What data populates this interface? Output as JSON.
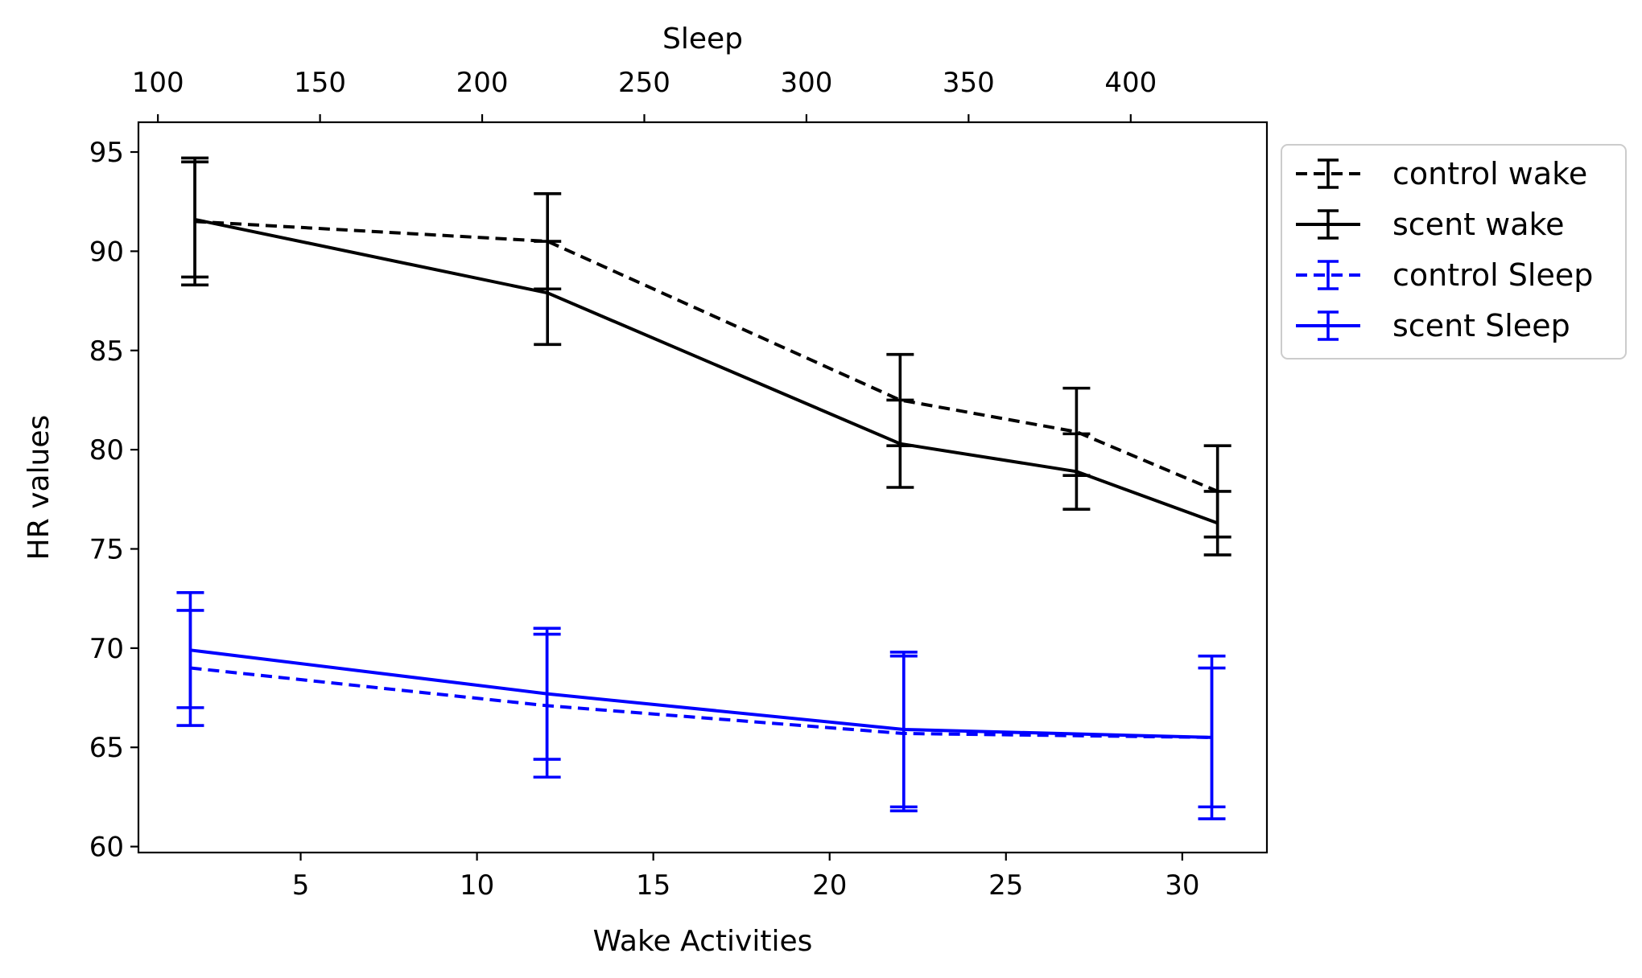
{
  "chart_data": {
    "type": "line",
    "title": "",
    "grid": false,
    "legend_position": "outside-right",
    "colors": {
      "wake": "#000000",
      "sleep": "#0000ff"
    },
    "x_bottom": {
      "label": "Wake Activities",
      "range": [
        0.4,
        32.4
      ],
      "ticks": [
        {
          "value": 5,
          "label": "5"
        },
        {
          "value": 10,
          "label": "10"
        },
        {
          "value": 15,
          "label": "15"
        },
        {
          "value": 20,
          "label": "20"
        },
        {
          "value": 25,
          "label": "25"
        },
        {
          "value": 30,
          "label": "30"
        }
      ]
    },
    "x_top": {
      "label": "Sleep",
      "range": [
        94,
        442
      ],
      "ticks": [
        {
          "value": 100,
          "label": "100"
        },
        {
          "value": 150,
          "label": "150"
        },
        {
          "value": 200,
          "label": "200"
        },
        {
          "value": 250,
          "label": "250"
        },
        {
          "value": 300,
          "label": "300"
        },
        {
          "value": 350,
          "label": "350"
        },
        {
          "value": 400,
          "label": "400"
        }
      ]
    },
    "y": {
      "label": "HR values",
      "range": [
        59.7,
        96.5
      ],
      "ticks": [
        {
          "value": 60,
          "label": "60"
        },
        {
          "value": 65,
          "label": "65"
        },
        {
          "value": 70,
          "label": "70"
        },
        {
          "value": 75,
          "label": "75"
        },
        {
          "value": 80,
          "label": "80"
        },
        {
          "value": 85,
          "label": "85"
        },
        {
          "value": 90,
          "label": "90"
        },
        {
          "value": 95,
          "label": "95"
        }
      ]
    },
    "series": [
      {
        "name": "control wake",
        "axis": "bottom",
        "color": "#000000",
        "dashed": true,
        "x": [
          2,
          12,
          22,
          27,
          31
        ],
        "y": [
          91.5,
          90.5,
          82.5,
          80.9,
          77.9
        ],
        "err": [
          3.2,
          2.4,
          2.3,
          2.2,
          2.3
        ]
      },
      {
        "name": "scent wake",
        "axis": "bottom",
        "color": "#000000",
        "dashed": false,
        "x": [
          2,
          12,
          22,
          27,
          31
        ],
        "y": [
          91.6,
          87.9,
          80.3,
          78.9,
          76.3
        ],
        "err": [
          2.9,
          2.6,
          2.2,
          1.9,
          1.6
        ]
      },
      {
        "name": "control Sleep",
        "axis": "top",
        "color": "#0000ff",
        "dashed": true,
        "x": [
          110,
          220,
          330,
          425
        ],
        "y": [
          69.0,
          67.1,
          65.7,
          65.5
        ],
        "err": [
          2.9,
          3.6,
          3.9,
          3.5
        ]
      },
      {
        "name": "scent Sleep",
        "axis": "top",
        "color": "#0000ff",
        "dashed": false,
        "x": [
          110,
          220,
          330,
          425
        ],
        "y": [
          69.9,
          67.7,
          65.9,
          65.5
        ],
        "err": [
          2.9,
          3.3,
          3.9,
          4.1
        ]
      }
    ]
  }
}
